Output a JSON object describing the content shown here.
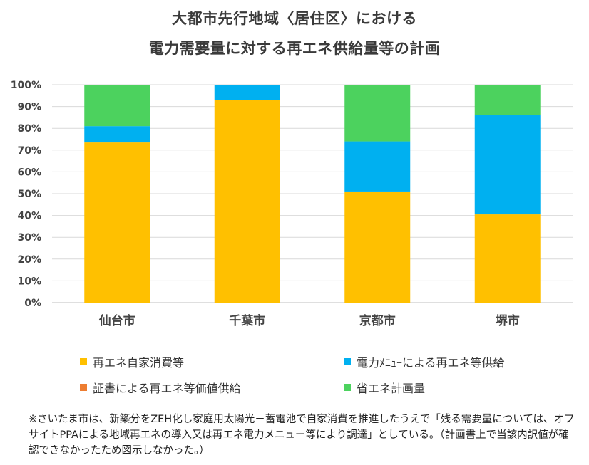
{
  "title_line1": "大都市先行地域〈居住区〉における",
  "title_line2": "電力需要量に対する再エネ供給量等の計画",
  "legend": {
    "self": "再エネ自家消費等",
    "menu": "電力ﾒﾆｭｰによる再エネ等供給",
    "cert": "証書による再エネ等価値供給",
    "save": "省エネ計画量"
  },
  "colors": {
    "self": "#FFC000",
    "menu": "#00B0F0",
    "cert": "#ED7D31",
    "save": "#4CD25E",
    "grid": "#D9D9D9",
    "axis": "#BFBFBF"
  },
  "footnote": "※さいたま市は、新築分をZEH化し家庭用太陽光＋蓄電池で自家消費を推進したうえで「残る需要量については、オフサイトPPAによる地域再エネの導入又は再エネ電力メニュー等により調達」としている。（計画書上で当該内訳値が確認できなかったため図示しなかった。）",
  "chart_data": {
    "type": "bar",
    "stacked": true,
    "categories": [
      "仙台市",
      "千葉市",
      "京都市",
      "堺市"
    ],
    "series": [
      {
        "name": "再エネ自家消費等",
        "values": [
          73.5,
          93.0,
          51.0,
          40.5
        ]
      },
      {
        "name": "電力ﾒﾆｭｰによる再エネ等供給",
        "values": [
          7.5,
          7.0,
          23.0,
          45.5
        ]
      },
      {
        "name": "証書による再エネ等価値供給",
        "values": [
          0,
          0,
          0,
          0
        ]
      },
      {
        "name": "省エネ計画量",
        "values": [
          19.0,
          0,
          26.0,
          14.0
        ]
      }
    ],
    "yticks": [
      "0%",
      "10%",
      "20%",
      "30%",
      "40%",
      "50%",
      "60%",
      "70%",
      "80%",
      "90%",
      "100%"
    ],
    "ylim": [
      0,
      100
    ],
    "grid": true,
    "legend_position": "bottom"
  }
}
